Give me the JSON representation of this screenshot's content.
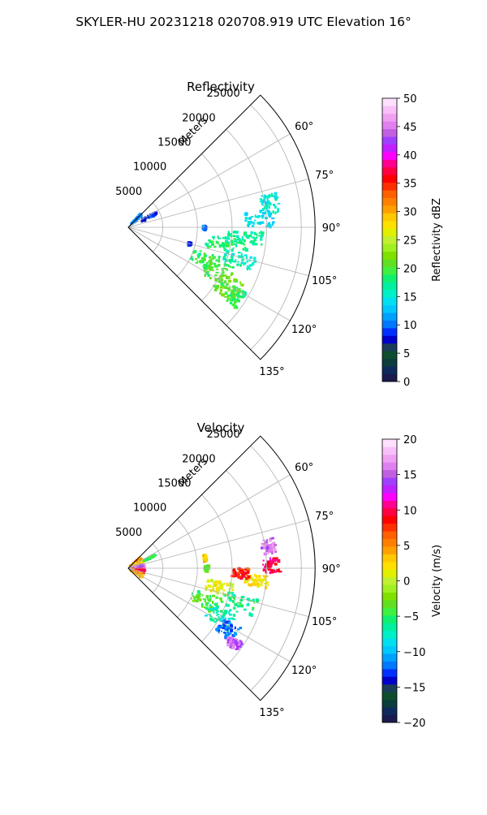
{
  "figure": {
    "suptitle": "SKYLER-HU  20231218  020708.919 UTC Elevation 16°"
  },
  "chart_data": [
    {
      "type": "heatmap",
      "projection": "polar-sector",
      "title": "Reflectivity",
      "radial_axis_label": "Meters",
      "radial_ticks": [
        5000,
        10000,
        15000,
        20000,
        25000
      ],
      "radial_tick_labels": [
        "5000",
        "10000",
        "15000",
        "20000",
        "25000"
      ],
      "rlim": [
        0,
        27000
      ],
      "theta_range_deg": [
        45,
        135
      ],
      "theta_ticks_deg": [
        60,
        75,
        90,
        105,
        120,
        135
      ],
      "theta_tick_labels": [
        "60°",
        "75°",
        "90°",
        "105°",
        "120°",
        "135°"
      ],
      "grid": true,
      "colorbar": {
        "label": "Reflectivity dBZ",
        "range": [
          0,
          50
        ],
        "ticks": [
          0,
          5,
          10,
          15,
          20,
          25,
          30,
          35,
          40,
          45,
          50
        ],
        "tick_labels": [
          "0",
          "5",
          "10",
          "15",
          "20",
          "25",
          "30",
          "35",
          "40",
          "45",
          "50"
        ],
        "colors": [
          "#1a1a4e",
          "#0d2a5a",
          "#0b3d3d",
          "#0f4d2f",
          "#1a3d5a",
          "#0000c8",
          "#0030ff",
          "#0078ff",
          "#00a0ff",
          "#00c8ff",
          "#00e0f0",
          "#00f0c8",
          "#00f0a0",
          "#10f070",
          "#40f040",
          "#60e020",
          "#80e000",
          "#a0f020",
          "#c0f030",
          "#e0f000",
          "#ffe000",
          "#ffc800",
          "#ffa000",
          "#ff8000",
          "#ff6000",
          "#ff3000",
          "#ff0000",
          "#ff0040",
          "#ff0090",
          "#ff00ff",
          "#c020ff",
          "#a040ff",
          "#c060e0",
          "#e080f0",
          "#f0a0f0",
          "#f8c0f8",
          "#fce0fc"
        ]
      },
      "echo_regions": [
        {
          "az": [
            42,
            49
          ],
          "range": [
            600,
            2600
          ],
          "value": 11
        },
        {
          "az": [
            61,
            65
          ],
          "range": [
            2200,
            4800
          ],
          "value": 8
        },
        {
          "az": [
            89,
            92
          ],
          "range": [
            10800,
            11200
          ],
          "value": 10
        },
        {
          "az": [
            104,
            106
          ],
          "range": [
            9000,
            9300
          ],
          "value": 9
        },
        {
          "az": [
            77,
            85
          ],
          "range": [
            19500,
            22000
          ],
          "value": 15
        },
        {
          "az": [
            83,
            90
          ],
          "range": [
            17000,
            21000
          ],
          "value": 14
        },
        {
          "az": [
            92,
            98
          ],
          "range": [
            14500,
            19500
          ],
          "value": 17
        },
        {
          "az": [
            96,
            104
          ],
          "range": [
            11500,
            17500
          ],
          "value": 18
        },
        {
          "az": [
            103,
            110
          ],
          "range": [
            14500,
            19000
          ],
          "value": 16
        },
        {
          "az": [
            108,
            118
          ],
          "range": [
            10000,
            14000
          ],
          "value": 19
        },
        {
          "az": [
            110,
            122
          ],
          "range": [
            12500,
            16500
          ],
          "value": 20
        },
        {
          "az": [
            116,
            126
          ],
          "range": [
            15000,
            18500
          ],
          "value": 21
        },
        {
          "az": [
            119,
            127
          ],
          "range": [
            17500,
            19500
          ],
          "value": 19
        }
      ]
    },
    {
      "type": "heatmap",
      "projection": "polar-sector",
      "title": "Velocity",
      "radial_axis_label": "Meters",
      "radial_ticks": [
        5000,
        10000,
        15000,
        20000,
        25000
      ],
      "radial_tick_labels": [
        "5000",
        "10000",
        "15000",
        "20000",
        "25000"
      ],
      "rlim": [
        0,
        27000
      ],
      "theta_range_deg": [
        45,
        135
      ],
      "theta_ticks_deg": [
        60,
        75,
        90,
        105,
        120,
        135
      ],
      "theta_tick_labels": [
        "60°",
        "75°",
        "90°",
        "105°",
        "120°",
        "135°"
      ],
      "grid": true,
      "colorbar": {
        "label": "Velocity (m/s)",
        "range": [
          -20,
          20
        ],
        "ticks": [
          -20,
          -15,
          -10,
          -5,
          0,
          5,
          10,
          15,
          20
        ],
        "tick_labels": [
          "−20",
          "−15",
          "−10",
          "−5",
          "0",
          "5",
          "10",
          "15",
          "20"
        ],
        "colors": [
          "#1a1a4e",
          "#0d2a5a",
          "#0b3d3d",
          "#0f4d2f",
          "#1a3d5a",
          "#0000c8",
          "#0030ff",
          "#0078ff",
          "#00a0ff",
          "#00c8ff",
          "#00e0f0",
          "#00f0c8",
          "#00f0a0",
          "#10f070",
          "#40f040",
          "#60e020",
          "#80e000",
          "#a0f020",
          "#c0f030",
          "#e0f000",
          "#ffe000",
          "#ffc800",
          "#ffa000",
          "#ff8000",
          "#ff6000",
          "#ff3000",
          "#ff0000",
          "#ff0040",
          "#ff0090",
          "#ff00ff",
          "#c020ff",
          "#a040ff",
          "#c060e0",
          "#e080f0",
          "#f0a0f0",
          "#f8c0f8",
          "#fce0fc"
        ]
      },
      "echo_regions": [
        {
          "az": [
            46,
            60
          ],
          "range": [
            300,
            2400
          ],
          "value": 5
        },
        {
          "az": [
            60,
            75
          ],
          "range": [
            300,
            2400
          ],
          "value": 3
        },
        {
          "az": [
            75,
            92
          ],
          "range": [
            300,
            2400
          ],
          "value": 15
        },
        {
          "az": [
            92,
            110
          ],
          "range": [
            300,
            2400
          ],
          "value": 10
        },
        {
          "az": [
            110,
            124
          ],
          "range": [
            300,
            2400
          ],
          "value": 4
        },
        {
          "az": [
            63,
            65
          ],
          "range": [
            2500,
            4300
          ],
          "value": -5
        },
        {
          "az": [
            80,
            85
          ],
          "range": [
            11000,
            11400
          ],
          "value": 3
        },
        {
          "az": [
            88,
            93
          ],
          "range": [
            11000,
            11600
          ],
          "value": -3
        },
        {
          "az": [
            78,
            84
          ],
          "range": [
            19500,
            21500
          ],
          "value": 16
        },
        {
          "az": [
            86,
            92
          ],
          "range": [
            19500,
            22000
          ],
          "value": 10
        },
        {
          "az": [
            93,
            98
          ],
          "range": [
            17000,
            20500
          ],
          "value": 2
        },
        {
          "az": [
            90,
            95
          ],
          "range": [
            15000,
            17500
          ],
          "value": 8
        },
        {
          "az": [
            98,
            106
          ],
          "range": [
            11500,
            15500
          ],
          "value": 1
        },
        {
          "az": [
            103,
            111
          ],
          "range": [
            14500,
            19500
          ],
          "value": -6
        },
        {
          "az": [
            108,
            118
          ],
          "range": [
            10000,
            14500
          ],
          "value": -4
        },
        {
          "az": [
            112,
            122
          ],
          "range": [
            13000,
            17000
          ],
          "value": -7
        },
        {
          "az": [
            118,
            126
          ],
          "range": [
            15500,
            18500
          ],
          "value": -12
        },
        {
          "az": [
            123,
            128
          ],
          "range": [
            17500,
            19800
          ],
          "value": 15
        }
      ]
    }
  ]
}
